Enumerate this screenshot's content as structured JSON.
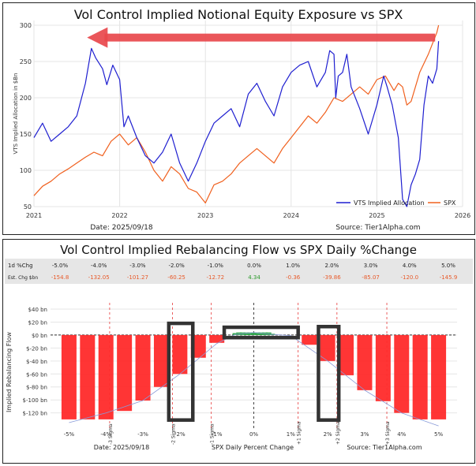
{
  "chart_data": [
    {
      "type": "line",
      "title": "Vol Control Implied Notional Equity Exposure vs SPX",
      "ylabel": "VTS Implied Allocation in $Bn",
      "xlabel": "",
      "ylim": [
        50,
        300
      ],
      "y_ticks": [
        "50",
        "100",
        "150",
        "200",
        "250",
        "300"
      ],
      "x_range": [
        2021.0,
        2026.0
      ],
      "x_ticks": [
        "2021",
        "2022",
        "2023",
        "2024",
        "2025",
        "2026"
      ],
      "date_text": "Date: 2025/09/18",
      "source_text": "Source: Tier1Alpha.com",
      "legend_position": "bottom-right",
      "annotation": "arrow pointing left from the 2025 SPX high back to the 2021 allocation peak",
      "series": [
        {
          "name": "VTS Implied Allocation",
          "color": "#1f1fd0",
          "x": [
            2021.0,
            2021.1,
            2021.2,
            2021.3,
            2021.4,
            2021.5,
            2021.6,
            2021.67,
            2021.72,
            2021.8,
            2021.85,
            2021.92,
            2022.0,
            2022.05,
            2022.1,
            2022.2,
            2022.3,
            2022.4,
            2022.5,
            2022.6,
            2022.7,
            2022.8,
            2022.9,
            2023.0,
            2023.1,
            2023.2,
            2023.3,
            2023.4,
            2023.5,
            2023.6,
            2023.7,
            2023.8,
            2023.9,
            2024.0,
            2024.1,
            2024.2,
            2024.3,
            2024.4,
            2024.45,
            2024.5,
            2024.52,
            2024.55,
            2024.6,
            2024.65,
            2024.7,
            2024.8,
            2024.9,
            2025.0,
            2025.08,
            2025.12,
            2025.18,
            2025.25,
            2025.3,
            2025.35,
            2025.4,
            2025.45,
            2025.5,
            2025.55,
            2025.6,
            2025.65,
            2025.7,
            2025.72
          ],
          "values": [
            145,
            165,
            140,
            150,
            160,
            175,
            220,
            268,
            255,
            240,
            218,
            245,
            225,
            160,
            175,
            145,
            120,
            110,
            125,
            150,
            110,
            85,
            110,
            140,
            165,
            175,
            185,
            160,
            205,
            220,
            195,
            175,
            215,
            235,
            245,
            250,
            215,
            235,
            265,
            260,
            200,
            230,
            235,
            260,
            215,
            185,
            150,
            190,
            230,
            215,
            190,
            145,
            60,
            50,
            80,
            95,
            115,
            190,
            230,
            220,
            240,
            278
          ]
        },
        {
          "name": "SPX",
          "color": "#f0601e",
          "x": [
            2021.0,
            2021.1,
            2021.2,
            2021.3,
            2021.4,
            2021.5,
            2021.6,
            2021.7,
            2021.8,
            2021.9,
            2022.0,
            2022.1,
            2022.2,
            2022.3,
            2022.4,
            2022.5,
            2022.6,
            2022.7,
            2022.8,
            2022.9,
            2023.0,
            2023.1,
            2023.2,
            2023.3,
            2023.4,
            2023.5,
            2023.6,
            2023.7,
            2023.8,
            2023.9,
            2024.0,
            2024.1,
            2024.2,
            2024.3,
            2024.4,
            2024.5,
            2024.6,
            2024.7,
            2024.8,
            2024.9,
            2025.0,
            2025.1,
            2025.2,
            2025.25,
            2025.3,
            2025.35,
            2025.4,
            2025.5,
            2025.6,
            2025.7,
            2025.72
          ],
          "values": [
            65,
            78,
            85,
            95,
            102,
            110,
            118,
            125,
            120,
            140,
            150,
            135,
            145,
            125,
            100,
            85,
            105,
            95,
            75,
            70,
            55,
            80,
            85,
            95,
            110,
            120,
            130,
            120,
            110,
            130,
            145,
            160,
            175,
            165,
            180,
            200,
            195,
            205,
            215,
            205,
            225,
            230,
            210,
            220,
            215,
            190,
            195,
            235,
            260,
            290,
            300
          ]
        }
      ]
    },
    {
      "type": "bar",
      "title": "Vol Control Implied Rebalancing Flow vs SPX Daily %Change",
      "ylabel": "Implied Rebalancing Flow",
      "xlabel": "SPX Daily Percent Change",
      "ylim": [
        -135,
        40
      ],
      "y_ticks": [
        "$40 bn",
        "$20 bn",
        "$0 bn",
        "$-20 bn",
        "$-40 bn",
        "$-60 bn",
        "$-80 bn",
        "$-100 bn",
        "$-120 bn"
      ],
      "x_tick_labels": [
        "-5%",
        "-4%",
        "-3%",
        "-2%",
        "-1%",
        "0%",
        "1%",
        "2%",
        "3%",
        "4%",
        "5%"
      ],
      "table": {
        "row1_label": "1d %Chg",
        "row2_label": "Est. Chg $bn",
        "pct": [
          "-5.0%",
          "-4.0%",
          "-3.0%",
          "-2.0%",
          "-1.0%",
          "0.0%",
          "1.0%",
          "2.0%",
          "3.0%",
          "4.0%",
          "5.0%"
        ],
        "est": [
          "-154.8",
          "-132.05",
          "-101.27",
          "-60.25",
          "-12.72",
          "4.34",
          "-0.36",
          "-39.86",
          "-85.07",
          "-120.0",
          "-145.9"
        ]
      },
      "sigma_labels": [
        "-3 Sigma",
        "-2 Sigma",
        "-1 Sigma",
        "+1 Sigma",
        "+2 Sigma",
        "+3 Sigma"
      ],
      "sigma_x": [
        -3.9,
        -2.2,
        -1.15,
        1.2,
        2.25,
        3.6
      ],
      "date_text": "Date: 2025/09/18",
      "source_text": "Source: Tier1Alpha.com",
      "bars_x": [
        -5,
        -4.5,
        -4,
        -3.5,
        -3,
        -2.5,
        -2,
        -1.5,
        -1,
        -0.5,
        -0.4,
        -0.3,
        -0.2,
        -0.1,
        0,
        0.1,
        0.2,
        0.3,
        0.4,
        0.5,
        1.5,
        2,
        2.5,
        3,
        3.5,
        4,
        4.5,
        5
      ],
      "bars_values": [
        -130,
        -130,
        -130,
        -117,
        -101,
        -80,
        -60,
        -35,
        -12,
        3,
        4,
        4,
        4,
        4,
        4,
        4,
        4,
        4,
        4,
        2,
        -15,
        -40,
        -62,
        -85,
        -102,
        -120,
        -130,
        -130
      ],
      "highlight_boxes": [
        "-2%",
        "0%",
        "2%"
      ]
    }
  ]
}
